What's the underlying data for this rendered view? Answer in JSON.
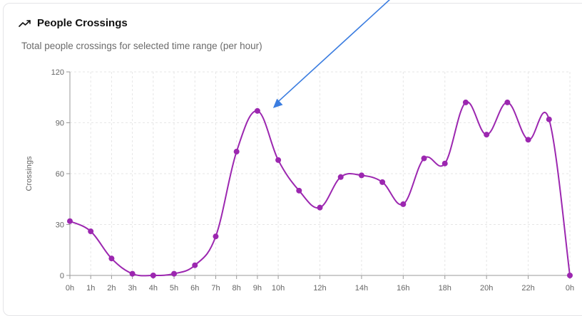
{
  "header": {
    "title": "People Crossings",
    "subtitle": "Total people crossings for selected time range (per hour)",
    "icon": "trending-up-icon"
  },
  "colors": {
    "line": "#9c27b0",
    "annotation_arrow": "#3b7de0",
    "grid": "#e6e6e6",
    "axis": "#999999"
  },
  "chart_data": {
    "type": "line",
    "title": "",
    "xlabel": "",
    "ylabel": "Crossings",
    "ylim": [
      0,
      120
    ],
    "yticks": [
      0,
      30,
      60,
      90,
      120
    ],
    "grid": true,
    "x_hours": [
      0,
      1,
      2,
      3,
      4,
      5,
      6,
      7,
      8,
      9,
      10,
      11,
      12,
      13,
      14,
      15,
      16,
      17,
      18,
      19,
      20,
      21,
      22,
      23,
      24
    ],
    "x_tick_labels": [
      "0h",
      "1h",
      "2h",
      "3h",
      "4h",
      "5h",
      "6h",
      "7h",
      "8h",
      "9h",
      "10h",
      "12h",
      "14h",
      "16h",
      "18h",
      "20h",
      "22h",
      "0h"
    ],
    "x_tick_hours": [
      0,
      1,
      2,
      3,
      4,
      5,
      6,
      7,
      8,
      9,
      10,
      12,
      14,
      16,
      18,
      20,
      22,
      24
    ],
    "series": [
      {
        "values": [
          32,
          26,
          10,
          1,
          0,
          1,
          6,
          23,
          73,
          97,
          68,
          50,
          40,
          58,
          59,
          55,
          42,
          69,
          66,
          102,
          83,
          102,
          80,
          92,
          0
        ]
      }
    ],
    "annotations": [
      {
        "type": "arrow",
        "points_to_hour": 9
      }
    ]
  }
}
